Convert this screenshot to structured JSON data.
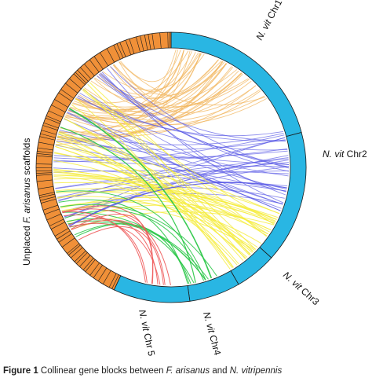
{
  "colors": {
    "chr_block": "#29b6e3",
    "scaffold_block": "#f09038",
    "outline": "#1a1a1a",
    "link_orange": "#f2b65e",
    "link_blue": "#5a5ae6",
    "link_yellow": "#f5ec3c",
    "link_green": "#2ec84a",
    "link_red": "#ee5a5a"
  },
  "labels": {
    "chr1_prefix": "N. vit",
    "chr1_suffix": " Chr1",
    "chr2_prefix": "N. vit",
    "chr2_suffix": " Chr2",
    "chr3_prefix": "N. vit",
    "chr3_suffix": " Chr3",
    "chr4_prefix": "N. vit",
    "chr4_suffix": " Chr4",
    "chr5_prefix": "N. vit",
    "chr5_suffix": " Chr 5",
    "scaffolds_pre": "Unplaced ",
    "scaffolds_species": "F. arisanus",
    "scaffolds_post": " scaffolds"
  },
  "caption": {
    "figure": "Figure 1",
    "text_a": "  Collinear gene blocks between ",
    "species_a": "F. arisanus",
    "text_b": " and ",
    "species_b": "N. vitripennis"
  },
  "link_groups": [
    {
      "name": "orange",
      "chromosome": "Chr1"
    },
    {
      "name": "blue",
      "chromosome": "Chr2"
    },
    {
      "name": "yellow",
      "chromosome": "Chr3"
    },
    {
      "name": "green",
      "chromosome": "Chr4"
    },
    {
      "name": "red",
      "chromosome": "Chr5"
    }
  ]
}
